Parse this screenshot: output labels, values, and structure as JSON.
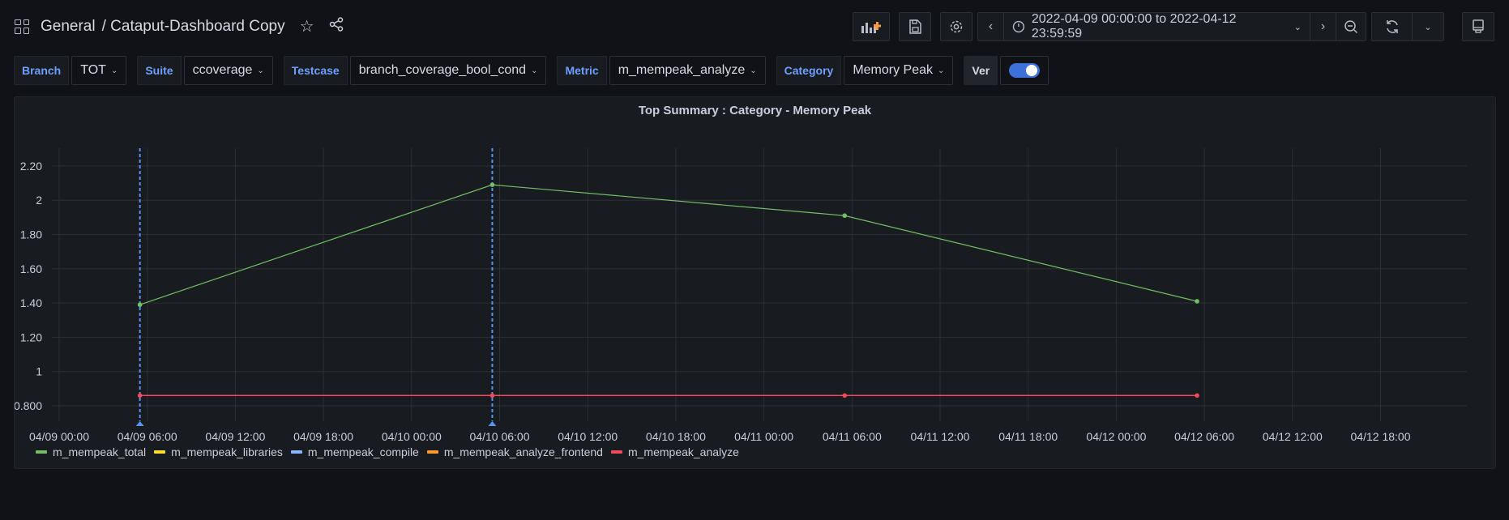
{
  "header": {
    "folder": "General",
    "title": "/ Cataput-Dashboard Copy",
    "icons": [
      "apps-grid-icon",
      "star-icon",
      "share-icon"
    ]
  },
  "toolbar": {
    "add_panel_icon": "add-panel-icon",
    "save_icon": "save-icon",
    "settings_icon": "gear-icon",
    "time_range": "2022-04-09 00:00:00 to 2022-04-12 23:59:59",
    "refresh_icon": "refresh-icon",
    "tv_icon": "monitor-icon"
  },
  "variables": [
    {
      "label": "Branch",
      "value": "TOT"
    },
    {
      "label": "Suite",
      "value": "ccoverage"
    },
    {
      "label": "Testcase",
      "value": "branch_coverage_bool_cond"
    },
    {
      "label": "Metric",
      "value": "m_mempeak_analyze"
    },
    {
      "label": "Category",
      "value": "Memory Peak"
    }
  ],
  "ver_toggle": {
    "label": "Ver",
    "on": true
  },
  "panel": {
    "title": "Top Summary : Category - Memory Peak"
  },
  "chart_data": {
    "type": "line",
    "title": "Top Summary : Category - Memory Peak",
    "xlabel": "",
    "ylabel": "",
    "x_tick_labels": [
      "04/09 00:00",
      "04/09 06:00",
      "04/09 12:00",
      "04/09 18:00",
      "04/10 00:00",
      "04/10 06:00",
      "04/10 12:00",
      "04/10 18:00",
      "04/11 00:00",
      "04/11 06:00",
      "04/11 12:00",
      "04/11 18:00",
      "04/12 00:00",
      "04/12 06:00",
      "04/12 12:00",
      "04/12 18:00"
    ],
    "y_tick_labels": [
      "0.800",
      "1",
      "1.20",
      "1.40",
      "1.60",
      "1.80",
      "2",
      "2.20"
    ],
    "ylim": [
      0.74,
      2.28
    ],
    "x": [
      "04/09 05:30",
      "04/10 05:30",
      "04/11 05:30",
      "04/12 05:30"
    ],
    "series": [
      {
        "name": "m_mempeak_total",
        "color": "#73bf69",
        "values": [
          1.39,
          2.09,
          1.91,
          1.41
        ]
      },
      {
        "name": "m_mempeak_libraries",
        "color": "#fade2a",
        "values": []
      },
      {
        "name": "m_mempeak_compile",
        "color": "#8ab8ff",
        "values": []
      },
      {
        "name": "m_mempeak_analyze_frontend",
        "color": "#ff9830",
        "values": []
      },
      {
        "name": "m_mempeak_analyze",
        "color": "#f2495c",
        "values": [
          0.86,
          0.86,
          0.86,
          0.86
        ]
      }
    ],
    "annotations": [
      {
        "x": "04/09 05:30",
        "color": "#5794f2",
        "style": "dashed"
      },
      {
        "x": "04/10 05:30",
        "color": "#5794f2",
        "style": "dashed"
      }
    ],
    "grid": true,
    "legend_position": "bottom"
  }
}
